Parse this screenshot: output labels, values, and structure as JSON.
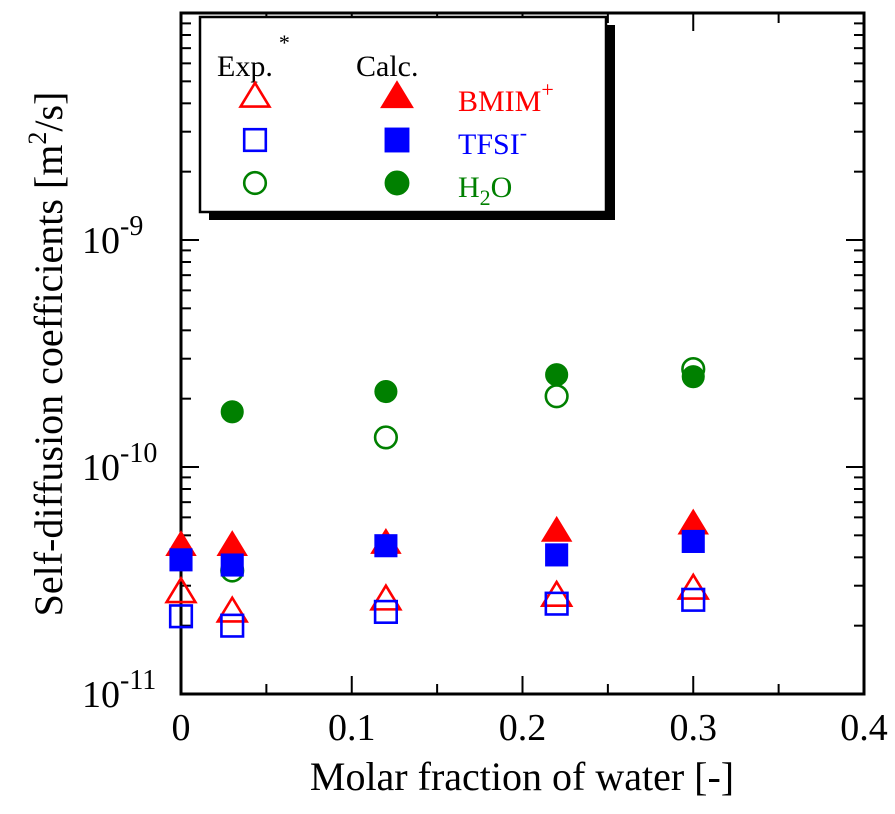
{
  "chart_data": {
    "type": "scatter",
    "xlabel": "Molar fraction of water [-]",
    "ylabel": {
      "main": "Self-diffusion coefficients [m",
      "sup": "2",
      "tail": "/s]"
    },
    "xlim": [
      0,
      0.4
    ],
    "ylim": [
      1e-11,
      1e-08
    ],
    "yscale": "log",
    "x_ticks": [
      {
        "value": 0,
        "label": "0"
      },
      {
        "value": 0.1,
        "label": "0.1"
      },
      {
        "value": 0.2,
        "label": "0.2"
      },
      {
        "value": 0.3,
        "label": "0.3"
      },
      {
        "value": 0.4,
        "label": "0.4"
      }
    ],
    "y_ticks": [
      {
        "value": 1e-11,
        "base": "10",
        "exp": "-11"
      },
      {
        "value": 1e-10,
        "base": "10",
        "exp": "-10"
      },
      {
        "value": 1e-09,
        "base": "10",
        "exp": "-9"
      }
    ],
    "grid": false,
    "legend": {
      "placement": "top-left",
      "exp_header": "Exp.",
      "exp_header_mark": "*",
      "calc_header": "Calc.",
      "entries": [
        {
          "label": "BMIM",
          "sup": "+",
          "sub": "",
          "tail": "",
          "color": "#ff0000",
          "marker": "triangle"
        },
        {
          "label": "TFSI",
          "sup": "-",
          "sub": "",
          "tail": "",
          "color": "#0000ff",
          "marker": "square"
        },
        {
          "label": "H",
          "sup": "",
          "sub": "2",
          "tail": "O",
          "color": "#008000",
          "marker": "circle"
        }
      ]
    },
    "series": [
      {
        "name": "BMIM+ Exp.",
        "marker": "triangle",
        "filled": false,
        "color": "#ff0000",
        "x": [
          0,
          0.03,
          0.12,
          0.22,
          0.3
        ],
        "y": [
          2.8e-11,
          2.3e-11,
          2.6e-11,
          2.7e-11,
          2.9e-11
        ]
      },
      {
        "name": "TFSI- Exp.",
        "marker": "square",
        "filled": false,
        "color": "#0000ff",
        "x": [
          0,
          0.03,
          0.12,
          0.22,
          0.3
        ],
        "y": [
          2.2e-11,
          2e-11,
          2.3e-11,
          2.5e-11,
          2.6e-11
        ]
      },
      {
        "name": "H2O Exp.",
        "marker": "circle",
        "filled": false,
        "color": "#008000",
        "x": [
          0.03,
          0.12,
          0.22,
          0.3
        ],
        "y": [
          3.5e-11,
          1.35e-10,
          2.05e-10,
          2.7e-10
        ]
      },
      {
        "name": "BMIM+ Calc.",
        "marker": "triangle",
        "filled": true,
        "color": "#ff0000",
        "x": [
          0,
          0.03,
          0.12,
          0.22,
          0.3
        ],
        "y": [
          4.5e-11,
          4.5e-11,
          4.6e-11,
          5.2e-11,
          5.6e-11
        ]
      },
      {
        "name": "TFSI- Calc.",
        "marker": "square",
        "filled": true,
        "color": "#0000ff",
        "x": [
          0,
          0.03,
          0.12,
          0.22,
          0.3
        ],
        "y": [
          3.9e-11,
          3.7e-11,
          4.5e-11,
          4.1e-11,
          4.7e-11
        ]
      },
      {
        "name": "H2O Calc.",
        "marker": "circle",
        "filled": true,
        "color": "#008000",
        "x": [
          0.03,
          0.12,
          0.22,
          0.3
        ],
        "y": [
          1.75e-10,
          2.15e-10,
          2.55e-10,
          2.5e-10
        ]
      }
    ]
  }
}
